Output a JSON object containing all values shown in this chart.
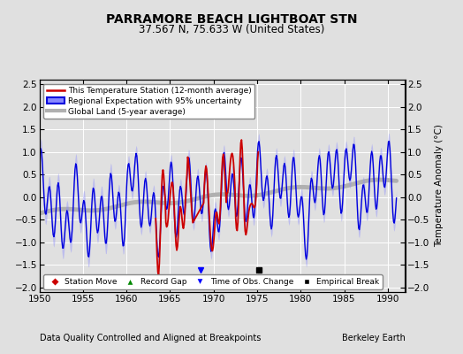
{
  "title": "PARRAMORE BEACH LIGHTBOAT STN",
  "subtitle": "37.567 N, 75.633 W (United States)",
  "xlabel_bottom": "Data Quality Controlled and Aligned at Breakpoints",
  "xlabel_right": "Berkeley Earth",
  "ylabel_right": "Temperature Anomaly (°C)",
  "xlim": [
    1950,
    1992
  ],
  "ylim": [
    -2.1,
    2.6
  ],
  "yticks": [
    -2,
    -1.5,
    -1,
    -0.5,
    0,
    0.5,
    1,
    1.5,
    2,
    2.5
  ],
  "xticks": [
    1950,
    1955,
    1960,
    1965,
    1970,
    1975,
    1980,
    1985,
    1990
  ],
  "bg_color": "#e0e0e0",
  "plot_bg_color": "#e0e0e0",
  "regional_fill_color": "#8888ff",
  "regional_line_color": "#0000dd",
  "station_color": "#cc0000",
  "global_land_color": "#b0b0b0",
  "time_obs_change_x": 1968.5,
  "empirical_break_x": 1975.2,
  "marker_y": -1.62
}
